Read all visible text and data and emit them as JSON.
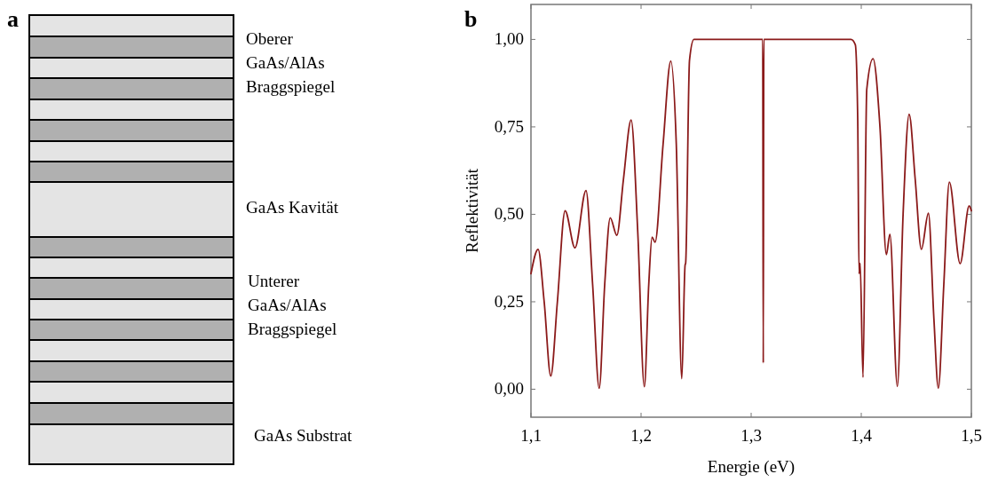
{
  "chart_data": [
    {
      "type": "other",
      "title": "a",
      "annotations": [
        "Oberer\nGaAs/AlAs\nBraggspiegel",
        "GaAs Kavität",
        "Unterer\nGaAs/AlAs\nBraggspiegel",
        "GaAs Substrat"
      ]
    },
    {
      "type": "line",
      "title": "b",
      "xlabel": "Energie (eV)",
      "ylabel": "Reflektivität",
      "xlim": [
        1.1,
        1.5
      ],
      "ylim": [
        -0.08,
        1.1
      ],
      "xticks": [
        {
          "value": 1.1,
          "label": "1,1"
        },
        {
          "value": 1.2,
          "label": "1,2"
        },
        {
          "value": 1.3,
          "label": "1,3"
        },
        {
          "value": 1.4,
          "label": "1,4"
        },
        {
          "value": 1.5,
          "label": "1,5"
        }
      ],
      "yticks": [
        {
          "value": 0,
          "label": "0,00"
        },
        {
          "value": 0.25,
          "label": "0,25"
        },
        {
          "value": 0.5,
          "label": "0,50"
        },
        {
          "value": 0.75,
          "label": "0,75"
        },
        {
          "value": 1,
          "label": "1,00"
        }
      ],
      "grid": false,
      "marker": "none",
      "line_style": "solid",
      "series": [
        {
          "color": "#8b1a1a",
          "x": [
            1.1,
            1.1065,
            1.112,
            1.118,
            1.124,
            1.131,
            1.14,
            1.15,
            1.156,
            1.162,
            1.167,
            1.172,
            1.178,
            1.184,
            1.191,
            1.197,
            1.203,
            1.207,
            1.21,
            1.2127,
            1.22,
            1.227,
            1.232,
            1.237,
            1.24,
            1.2405,
            1.244,
            1.248,
            1.31,
            1.3105,
            1.311,
            1.3115,
            1.3906,
            1.3946,
            1.3968,
            1.398,
            1.399,
            1.4016,
            1.405,
            1.4107,
            1.417,
            1.4228,
            1.426,
            1.4328,
            1.438,
            1.4435,
            1.449,
            1.4546,
            1.461,
            1.466,
            1.47,
            1.475,
            1.48,
            1.4898,
            1.498,
            1.5
          ],
          "values": [
            0.33,
            0.4,
            0.25,
            0.038,
            0.25,
            0.51,
            0.404,
            0.568,
            0.3,
            0.003,
            0.3,
            0.49,
            0.44,
            0.6,
            0.77,
            0.45,
            0.007,
            0.3,
            0.435,
            0.42,
            0.7,
            0.938,
            0.7,
            0.03,
            0.355,
            0.36,
            0.94,
            1.0,
            1.0,
            1.0,
            0.075,
            1.0,
            1.0,
            0.985,
            0.77,
            0.33,
            0.36,
            0.034,
            0.857,
            0.945,
            0.75,
            0.385,
            0.443,
            0.008,
            0.5,
            0.786,
            0.6,
            0.4,
            0.503,
            0.2,
            0.003,
            0.3,
            0.592,
            0.359,
            0.524,
            0.51
          ]
        }
      ]
    }
  ]
}
